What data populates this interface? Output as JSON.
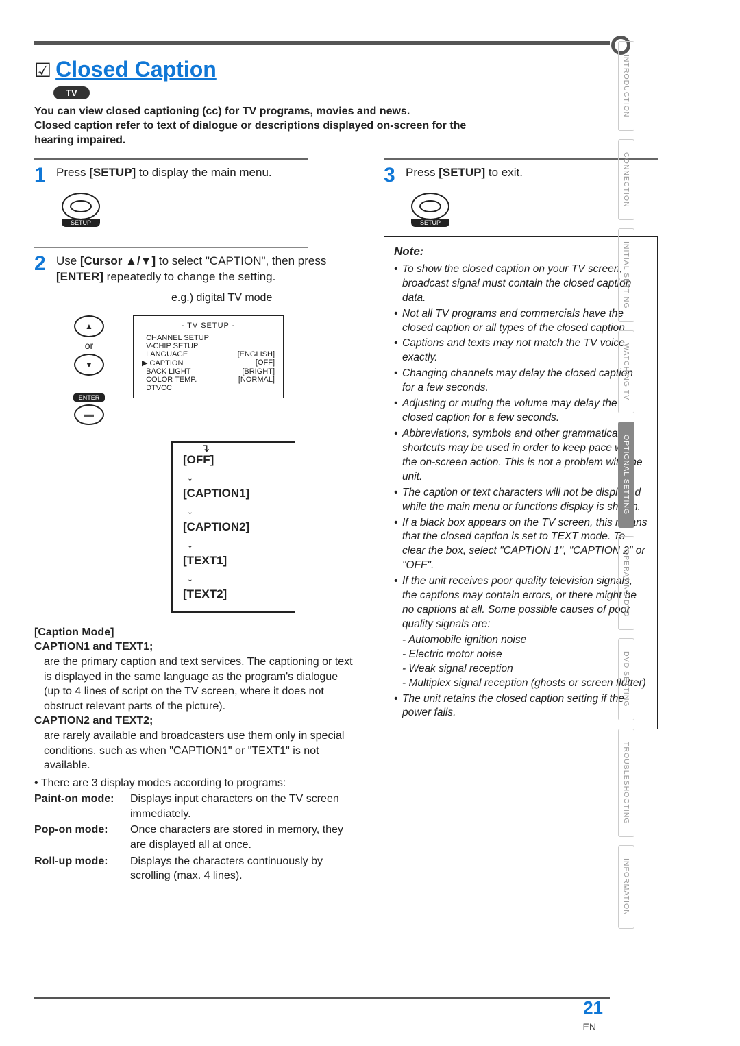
{
  "header": {
    "title": "Closed Caption",
    "badge": "TV",
    "intro_l1": "You can view closed captioning (cc) for TV programs, movies and news.",
    "intro_l2": "Closed caption refer to text of dialogue or descriptions displayed on-screen for the hearing impaired."
  },
  "steps": {
    "s1": {
      "num": "1",
      "text_a": "Press ",
      "bold": "[SETUP]",
      "text_b": " to display the main menu."
    },
    "s2": {
      "num": "2",
      "text_a": "Use ",
      "bold1": "[Cursor ▲/▼]",
      "text_b": " to select \"CAPTION\", then press ",
      "bold2": "[ENTER]",
      "text_c": " repeatedly to change the setting."
    },
    "s3": {
      "num": "3",
      "text_a": "Press ",
      "bold": "[SETUP]",
      "text_b": " to exit."
    }
  },
  "remote": {
    "or": "or",
    "enter": "ENTER",
    "setup": "SETUP"
  },
  "eg": "e.g.) digital TV mode",
  "menu": {
    "title": "- TV SETUP -",
    "rows": [
      [
        "CHANNEL SETUP",
        ""
      ],
      [
        "V-CHIP SETUP",
        ""
      ],
      [
        "LANGUAGE",
        "[ENGLISH]"
      ],
      [
        "CAPTION",
        "[OFF]"
      ],
      [
        "BACK LIGHT",
        "[BRIGHT]"
      ],
      [
        "COLOR TEMP.",
        "[NORMAL]"
      ],
      [
        "DTVCC",
        ""
      ]
    ],
    "pointer_row": 3
  },
  "cycle": [
    "[OFF]",
    "[CAPTION1]",
    "[CAPTION2]",
    "[TEXT1]",
    "[TEXT2]"
  ],
  "caption_mode": {
    "h": "[Caption Mode]",
    "c1h": "CAPTION1 and TEXT1;",
    "c1": "are the primary caption and text services. The captioning or text is displayed in the same language as the program's dialogue (up to 4 lines of script on the TV screen, where it does not obstruct relevant parts of the picture).",
    "c2h": "CAPTION2 and TEXT2;",
    "c2": "are rarely available and broadcasters use them only in special conditions, such as when \"CAPTION1\" or \"TEXT1\" is not available.",
    "bullet": "There are 3 display modes according to programs:",
    "modes": [
      [
        "Paint-on mode:",
        "Displays input characters on the TV screen immediately."
      ],
      [
        "Pop-on mode:",
        "Once characters are stored in memory, they are displayed all at once."
      ],
      [
        "Roll-up mode:",
        "Displays the characters continuously by scrolling (max. 4 lines)."
      ]
    ]
  },
  "note": {
    "h": "Note:",
    "items": [
      "To show the closed caption on your TV screen, broadcast signal must contain the closed caption data.",
      "Not all TV programs and commercials have the closed caption or all types of the closed caption.",
      "Captions and texts may not match the TV voice exactly.",
      "Changing channels may delay the closed caption for a few seconds.",
      "Adjusting or muting the volume may delay the closed caption for a few seconds.",
      "Abbreviations, symbols and other grammatical shortcuts may be used in order to keep pace with the on-screen action. This is not a problem with the unit.",
      "The caption or text characters will not be displayed while the main menu or functions display is shown.",
      "If a black box appears on the TV screen, this means that the closed caption is set to TEXT mode. To clear the box, select \"CAPTION 1\", \"CAPTION 2\" or \"OFF\".",
      "If the unit receives poor quality television signals, the captions may contain errors, or there might be no captions at all. Some possible causes of poor quality signals are:",
      "The unit retains the closed caption setting if the power fails."
    ],
    "sub": [
      "- Automobile ignition noise",
      "- Electric motor noise",
      "- Weak signal reception",
      "- Multiplex signal reception (ghosts or screen flutter)"
    ]
  },
  "tabs": [
    "INTRODUCTION",
    "CONNECTION",
    "INITIAL SETTING",
    "WATCHING TV",
    "OPTIONAL SETTING",
    "OPERATING DVD",
    "DVD SETTING",
    "TROUBLESHOOTING",
    "INFORMATION"
  ],
  "active_tab": 4,
  "page_num": "21",
  "en": "EN",
  "colors": {
    "accent": "#1077d6",
    "rule": "#555555",
    "tab_inactive": "#999999",
    "tab_active_bg": "#888888"
  }
}
